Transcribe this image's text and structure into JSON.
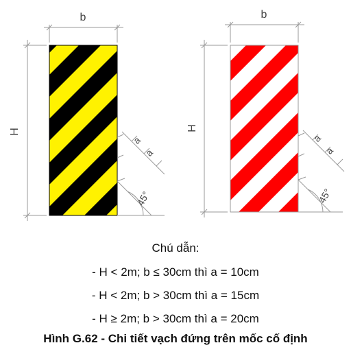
{
  "figure": {
    "left_post": {
      "stripe_colors": [
        "#000000",
        "#fff200"
      ],
      "width_label": "b",
      "height_label": "H",
      "spacing_labels": [
        "a",
        "a"
      ],
      "angle_label": "45°"
    },
    "right_post": {
      "stripe_colors": [
        "#ff0000",
        "#ffffff"
      ],
      "width_label": "b",
      "height_label": "H",
      "spacing_labels": [
        "a",
        "a"
      ],
      "angle_label": "45°"
    },
    "dimension_line_color": "#9a9a9a"
  },
  "legend": {
    "title": "Chú dẫn:",
    "lines": [
      "- H < 2m; b ≤ 30cm thì a = 10cm",
      "- H < 2m; b > 30cm thì a = 15cm",
      "- H ≥ 2m; b > 30cm thì a = 20cm"
    ]
  },
  "caption": "Hình G.62 - Chi tiết vạch đứng trên mốc cố định"
}
